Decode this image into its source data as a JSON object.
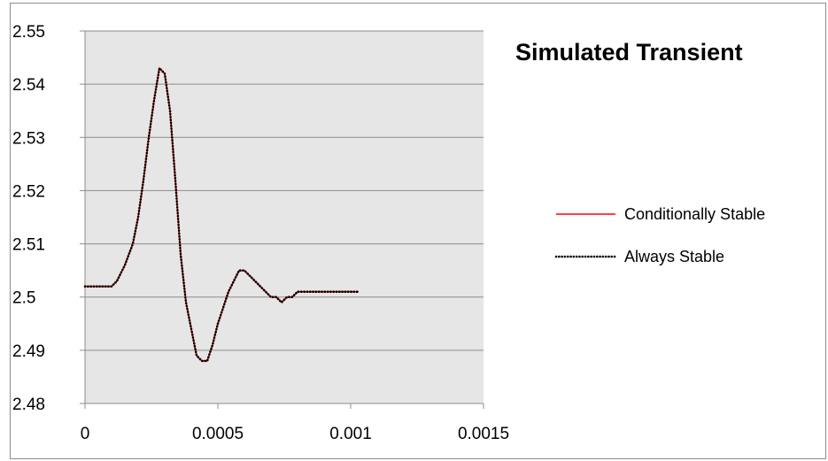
{
  "chart_data": {
    "type": "line",
    "title": "Simulated Transient",
    "xlim": [
      0,
      0.0015
    ],
    "ylim": [
      2.48,
      2.55
    ],
    "x_ticks": [
      0,
      0.0005,
      0.001,
      0.0015
    ],
    "x_tick_labels": [
      "0",
      "0.0005",
      "0.001",
      "0.0015"
    ],
    "y_ticks": [
      2.48,
      2.49,
      2.5,
      2.51,
      2.52,
      2.53,
      2.54,
      2.55
    ],
    "y_tick_labels": [
      "2.48",
      "2.49",
      "2.5",
      "2.51",
      "2.52",
      "2.53",
      "2.54",
      "2.55"
    ],
    "grid": "horizontal",
    "legend_position": "right",
    "plot_background": "#e6e6e6",
    "series": [
      {
        "name": "Conditionally Stable",
        "color": "#ff0000",
        "style": "solid",
        "x": [
          0,
          5e-05,
          0.0001,
          0.00012,
          0.00015,
          0.00018,
          0.0002,
          0.00022,
          0.00024,
          0.00026,
          0.00028,
          0.0003,
          0.00032,
          0.00034,
          0.00036,
          0.00038,
          0.0004,
          0.00042,
          0.00044,
          0.00046,
          0.00048,
          0.0005,
          0.00052,
          0.00054,
          0.00056,
          0.00058,
          0.0006,
          0.00062,
          0.00064,
          0.00066,
          0.00068,
          0.0007,
          0.00072,
          0.00074,
          0.00076,
          0.00078,
          0.0008,
          0.00085,
          0.0009,
          0.00095,
          0.001,
          0.00103
        ],
        "y": [
          2.502,
          2.502,
          2.502,
          2.503,
          2.506,
          2.51,
          2.515,
          2.522,
          2.53,
          2.537,
          2.543,
          2.542,
          2.535,
          2.522,
          2.508,
          2.499,
          2.494,
          2.489,
          2.488,
          2.488,
          2.491,
          2.495,
          2.498,
          2.501,
          2.503,
          2.505,
          2.505,
          2.504,
          2.503,
          2.502,
          2.501,
          2.5,
          2.5,
          2.499,
          2.5,
          2.5,
          2.501,
          2.501,
          2.501,
          2.501,
          2.501,
          2.501
        ]
      },
      {
        "name": "Always Stable",
        "color": "#000000",
        "style": "dotted",
        "x": [
          0,
          5e-05,
          0.0001,
          0.00012,
          0.00015,
          0.00018,
          0.0002,
          0.00022,
          0.00024,
          0.00026,
          0.00028,
          0.0003,
          0.00032,
          0.00034,
          0.00036,
          0.00038,
          0.0004,
          0.00042,
          0.00044,
          0.00046,
          0.00048,
          0.0005,
          0.00052,
          0.00054,
          0.00056,
          0.00058,
          0.0006,
          0.00062,
          0.00064,
          0.00066,
          0.00068,
          0.0007,
          0.00072,
          0.00074,
          0.00076,
          0.00078,
          0.0008,
          0.00085,
          0.0009,
          0.00095,
          0.001,
          0.00103
        ],
        "y": [
          2.502,
          2.502,
          2.502,
          2.503,
          2.506,
          2.51,
          2.515,
          2.522,
          2.53,
          2.537,
          2.543,
          2.542,
          2.535,
          2.522,
          2.508,
          2.499,
          2.494,
          2.489,
          2.488,
          2.488,
          2.491,
          2.495,
          2.498,
          2.501,
          2.503,
          2.505,
          2.505,
          2.504,
          2.503,
          2.502,
          2.501,
          2.5,
          2.5,
          2.499,
          2.5,
          2.5,
          2.501,
          2.501,
          2.501,
          2.501,
          2.501,
          2.501
        ]
      }
    ]
  }
}
